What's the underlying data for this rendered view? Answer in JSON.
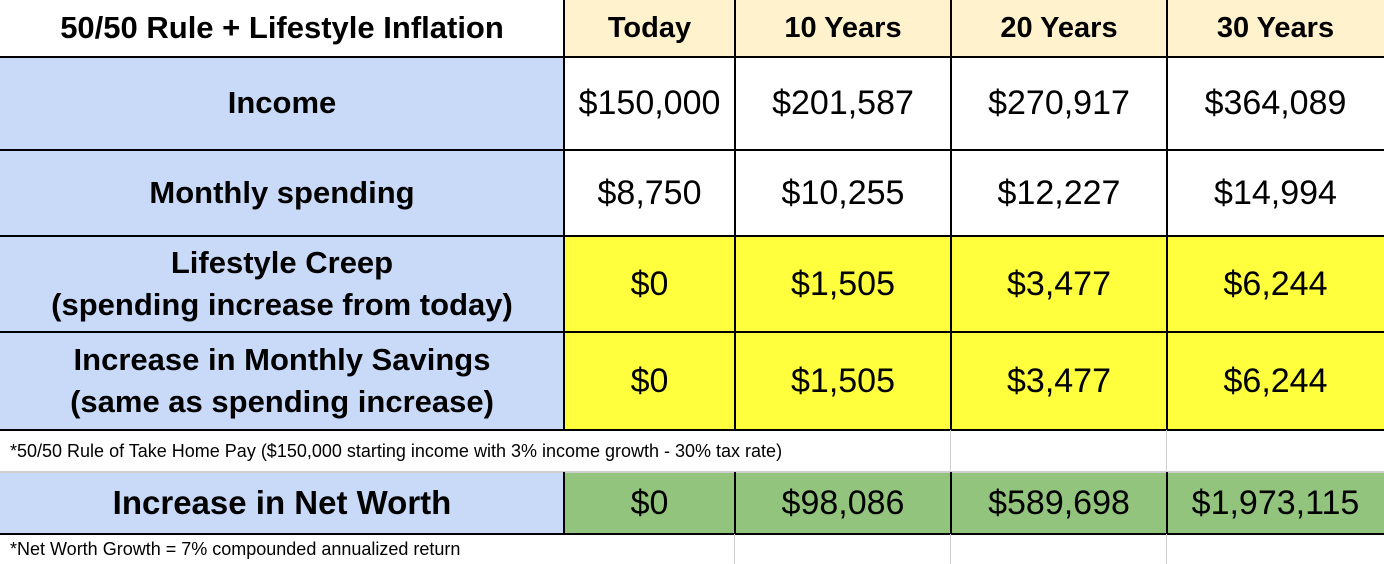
{
  "table": {
    "title": "50/50 Rule + Lifestyle Inflation",
    "columns": [
      "Today",
      "10 Years",
      "20 Years",
      "30 Years"
    ],
    "rows": [
      {
        "label": [
          "Income"
        ],
        "values": [
          "$150,000",
          "$201,587",
          "$270,917",
          "$364,089"
        ]
      },
      {
        "label": [
          "Monthly spending"
        ],
        "values": [
          "$8,750",
          "$10,255",
          "$12,227",
          "$14,994"
        ]
      },
      {
        "label": [
          "Lifestyle Creep",
          "(spending increase from today)"
        ],
        "values": [
          "$0",
          "$1,505",
          "$3,477",
          "$6,244"
        ]
      },
      {
        "label": [
          "Increase in Monthly Savings",
          "(same as spending increase)"
        ],
        "values": [
          "$0",
          "$1,505",
          "$3,477",
          "$6,244"
        ]
      }
    ],
    "note_1": "*50/50 Rule of Take Home Pay ($150,000 starting income with 3% income growth - 30% tax rate)",
    "net_worth": {
      "label": "Increase in Net Worth",
      "values": [
        "$0",
        "$98,086",
        "$589,698",
        "$1,973,115"
      ]
    },
    "note_2": "*Net Worth Growth = 7% compounded annualized return"
  },
  "colors": {
    "header_fill": "#fff2cc",
    "label_fill": "#c9daf8",
    "highlight_yellow": "#ffff3d",
    "highlight_green": "#93c47d"
  }
}
